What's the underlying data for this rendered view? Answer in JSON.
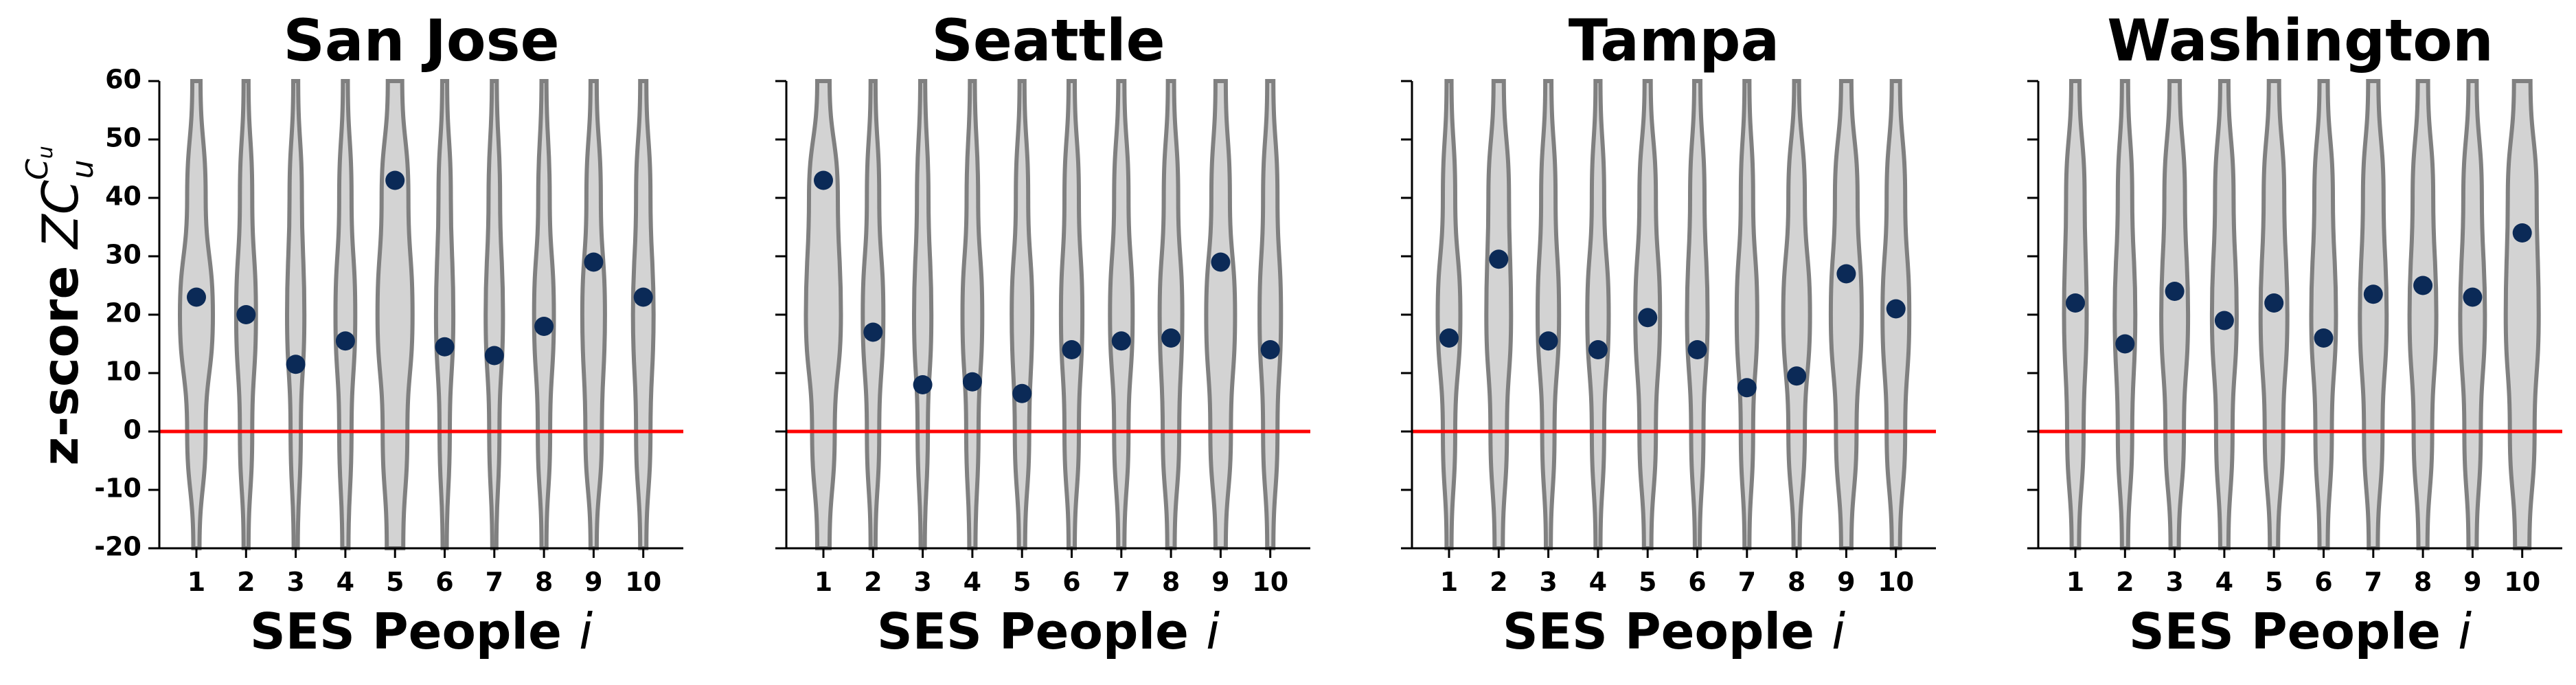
{
  "colors": {
    "violin_fill": "#d3d3d3",
    "violin_edge": "#808080",
    "point": "#0b2a57",
    "reference_line": "#ff0000"
  },
  "ylabel_main": "z-score ",
  "ylabel_symbol": "ZC",
  "ylabel_sup": "C",
  "ylabel_sup_sub": "u",
  "ylabel_sub": "u",
  "xlabel_main": "SES People ",
  "xlabel_symbol": "i",
  "chart_data": [
    {
      "type": "violin",
      "title": "San Jose",
      "categories": [
        "1",
        "2",
        "3",
        "4",
        "5",
        "6",
        "7",
        "8",
        "9",
        "10"
      ],
      "values": [
        23,
        20,
        11.5,
        15.5,
        43,
        14.5,
        13,
        18,
        29,
        23
      ],
      "widths": [
        [
          0.2,
          0.45,
          0.8,
          0.45,
          0.15
        ],
        [
          0.12,
          0.3,
          0.48,
          0.3,
          0.12
        ],
        [
          0.12,
          0.3,
          0.42,
          0.25,
          0.1
        ],
        [
          0.12,
          0.3,
          0.48,
          0.3,
          0.15
        ],
        [
          0.35,
          0.65,
          0.85,
          0.6,
          0.4
        ],
        [
          0.12,
          0.3,
          0.42,
          0.25,
          0.1
        ],
        [
          0.12,
          0.28,
          0.42,
          0.25,
          0.1
        ],
        [
          0.12,
          0.28,
          0.48,
          0.3,
          0.12
        ],
        [
          0.15,
          0.35,
          0.55,
          0.4,
          0.15
        ],
        [
          0.15,
          0.35,
          0.5,
          0.35,
          0.15
        ]
      ],
      "reference_line": 0,
      "ylim": [
        -20,
        60
      ],
      "yticks": [
        "-20",
        "-10",
        "0",
        "10",
        "20",
        "30",
        "40",
        "50",
        "60"
      ],
      "show_ytick_labels": true,
      "grid": false
    },
    {
      "type": "violin",
      "title": "Seattle",
      "categories": [
        "1",
        "2",
        "3",
        "4",
        "5",
        "6",
        "7",
        "8",
        "9",
        "10"
      ],
      "values": [
        43,
        17,
        8,
        8.5,
        6.5,
        14,
        15.5,
        16,
        29,
        14
      ],
      "widths": [
        [
          0.3,
          0.7,
          0.85,
          0.55,
          0.3
        ],
        [
          0.12,
          0.3,
          0.5,
          0.3,
          0.12
        ],
        [
          0.12,
          0.28,
          0.42,
          0.25,
          0.1
        ],
        [
          0.12,
          0.28,
          0.48,
          0.3,
          0.15
        ],
        [
          0.12,
          0.3,
          0.5,
          0.35,
          0.15
        ],
        [
          0.15,
          0.35,
          0.52,
          0.35,
          0.15
        ],
        [
          0.15,
          0.35,
          0.55,
          0.35,
          0.15
        ],
        [
          0.15,
          0.35,
          0.55,
          0.4,
          0.18
        ],
        [
          0.25,
          0.45,
          0.7,
          0.5,
          0.25
        ],
        [
          0.15,
          0.35,
          0.52,
          0.35,
          0.15
        ]
      ],
      "reference_line": 0,
      "ylim": [
        -20,
        60
      ],
      "yticks": [
        "-20",
        "-10",
        "0",
        "10",
        "20",
        "30",
        "40",
        "50",
        "60"
      ],
      "show_ytick_labels": false,
      "grid": false
    },
    {
      "type": "violin",
      "title": "Tampa",
      "categories": [
        "1",
        "2",
        "3",
        "4",
        "5",
        "6",
        "7",
        "8",
        "9",
        "10"
      ],
      "values": [
        16,
        29.5,
        15.5,
        14,
        19.5,
        14,
        7.5,
        9.5,
        27,
        21
      ],
      "widths": [
        [
          0.12,
          0.3,
          0.55,
          0.3,
          0.12
        ],
        [
          0.25,
          0.5,
          0.6,
          0.4,
          0.2
        ],
        [
          0.15,
          0.35,
          0.52,
          0.3,
          0.12
        ],
        [
          0.12,
          0.3,
          0.52,
          0.3,
          0.12
        ],
        [
          0.15,
          0.4,
          0.6,
          0.4,
          0.18
        ],
        [
          0.15,
          0.35,
          0.5,
          0.3,
          0.12
        ],
        [
          0.12,
          0.3,
          0.5,
          0.3,
          0.12
        ],
        [
          0.12,
          0.4,
          0.65,
          0.4,
          0.15
        ],
        [
          0.25,
          0.55,
          0.75,
          0.5,
          0.25
        ],
        [
          0.2,
          0.45,
          0.65,
          0.45,
          0.2
        ]
      ],
      "reference_line": 0,
      "ylim": [
        -20,
        60
      ],
      "yticks": [
        "-20",
        "-10",
        "0",
        "10",
        "20",
        "30",
        "40",
        "50",
        "60"
      ],
      "show_ytick_labels": false,
      "grid": false
    },
    {
      "type": "violin",
      "title": "Washington",
      "categories": [
        "1",
        "2",
        "3",
        "4",
        "5",
        "6",
        "7",
        "8",
        "9",
        "10"
      ],
      "values": [
        22,
        15,
        24,
        19,
        22,
        16,
        23.5,
        25,
        23,
        34
      ],
      "widths": [
        [
          0.2,
          0.45,
          0.55,
          0.4,
          0.18
        ],
        [
          0.15,
          0.35,
          0.5,
          0.35,
          0.15
        ],
        [
          0.25,
          0.5,
          0.65,
          0.45,
          0.2
        ],
        [
          0.2,
          0.45,
          0.6,
          0.4,
          0.2
        ],
        [
          0.25,
          0.5,
          0.65,
          0.45,
          0.2
        ],
        [
          0.2,
          0.45,
          0.6,
          0.4,
          0.2
        ],
        [
          0.25,
          0.5,
          0.65,
          0.45,
          0.22
        ],
        [
          0.25,
          0.5,
          0.65,
          0.45,
          0.22
        ],
        [
          0.2,
          0.45,
          0.6,
          0.4,
          0.2
        ],
        [
          0.4,
          0.7,
          0.8,
          0.6,
          0.35
        ]
      ],
      "reference_line": 0,
      "ylim": [
        -20,
        60
      ],
      "yticks": [
        "-20",
        "-10",
        "0",
        "10",
        "20",
        "30",
        "40",
        "50",
        "60"
      ],
      "show_ytick_labels": false,
      "grid": false
    }
  ]
}
